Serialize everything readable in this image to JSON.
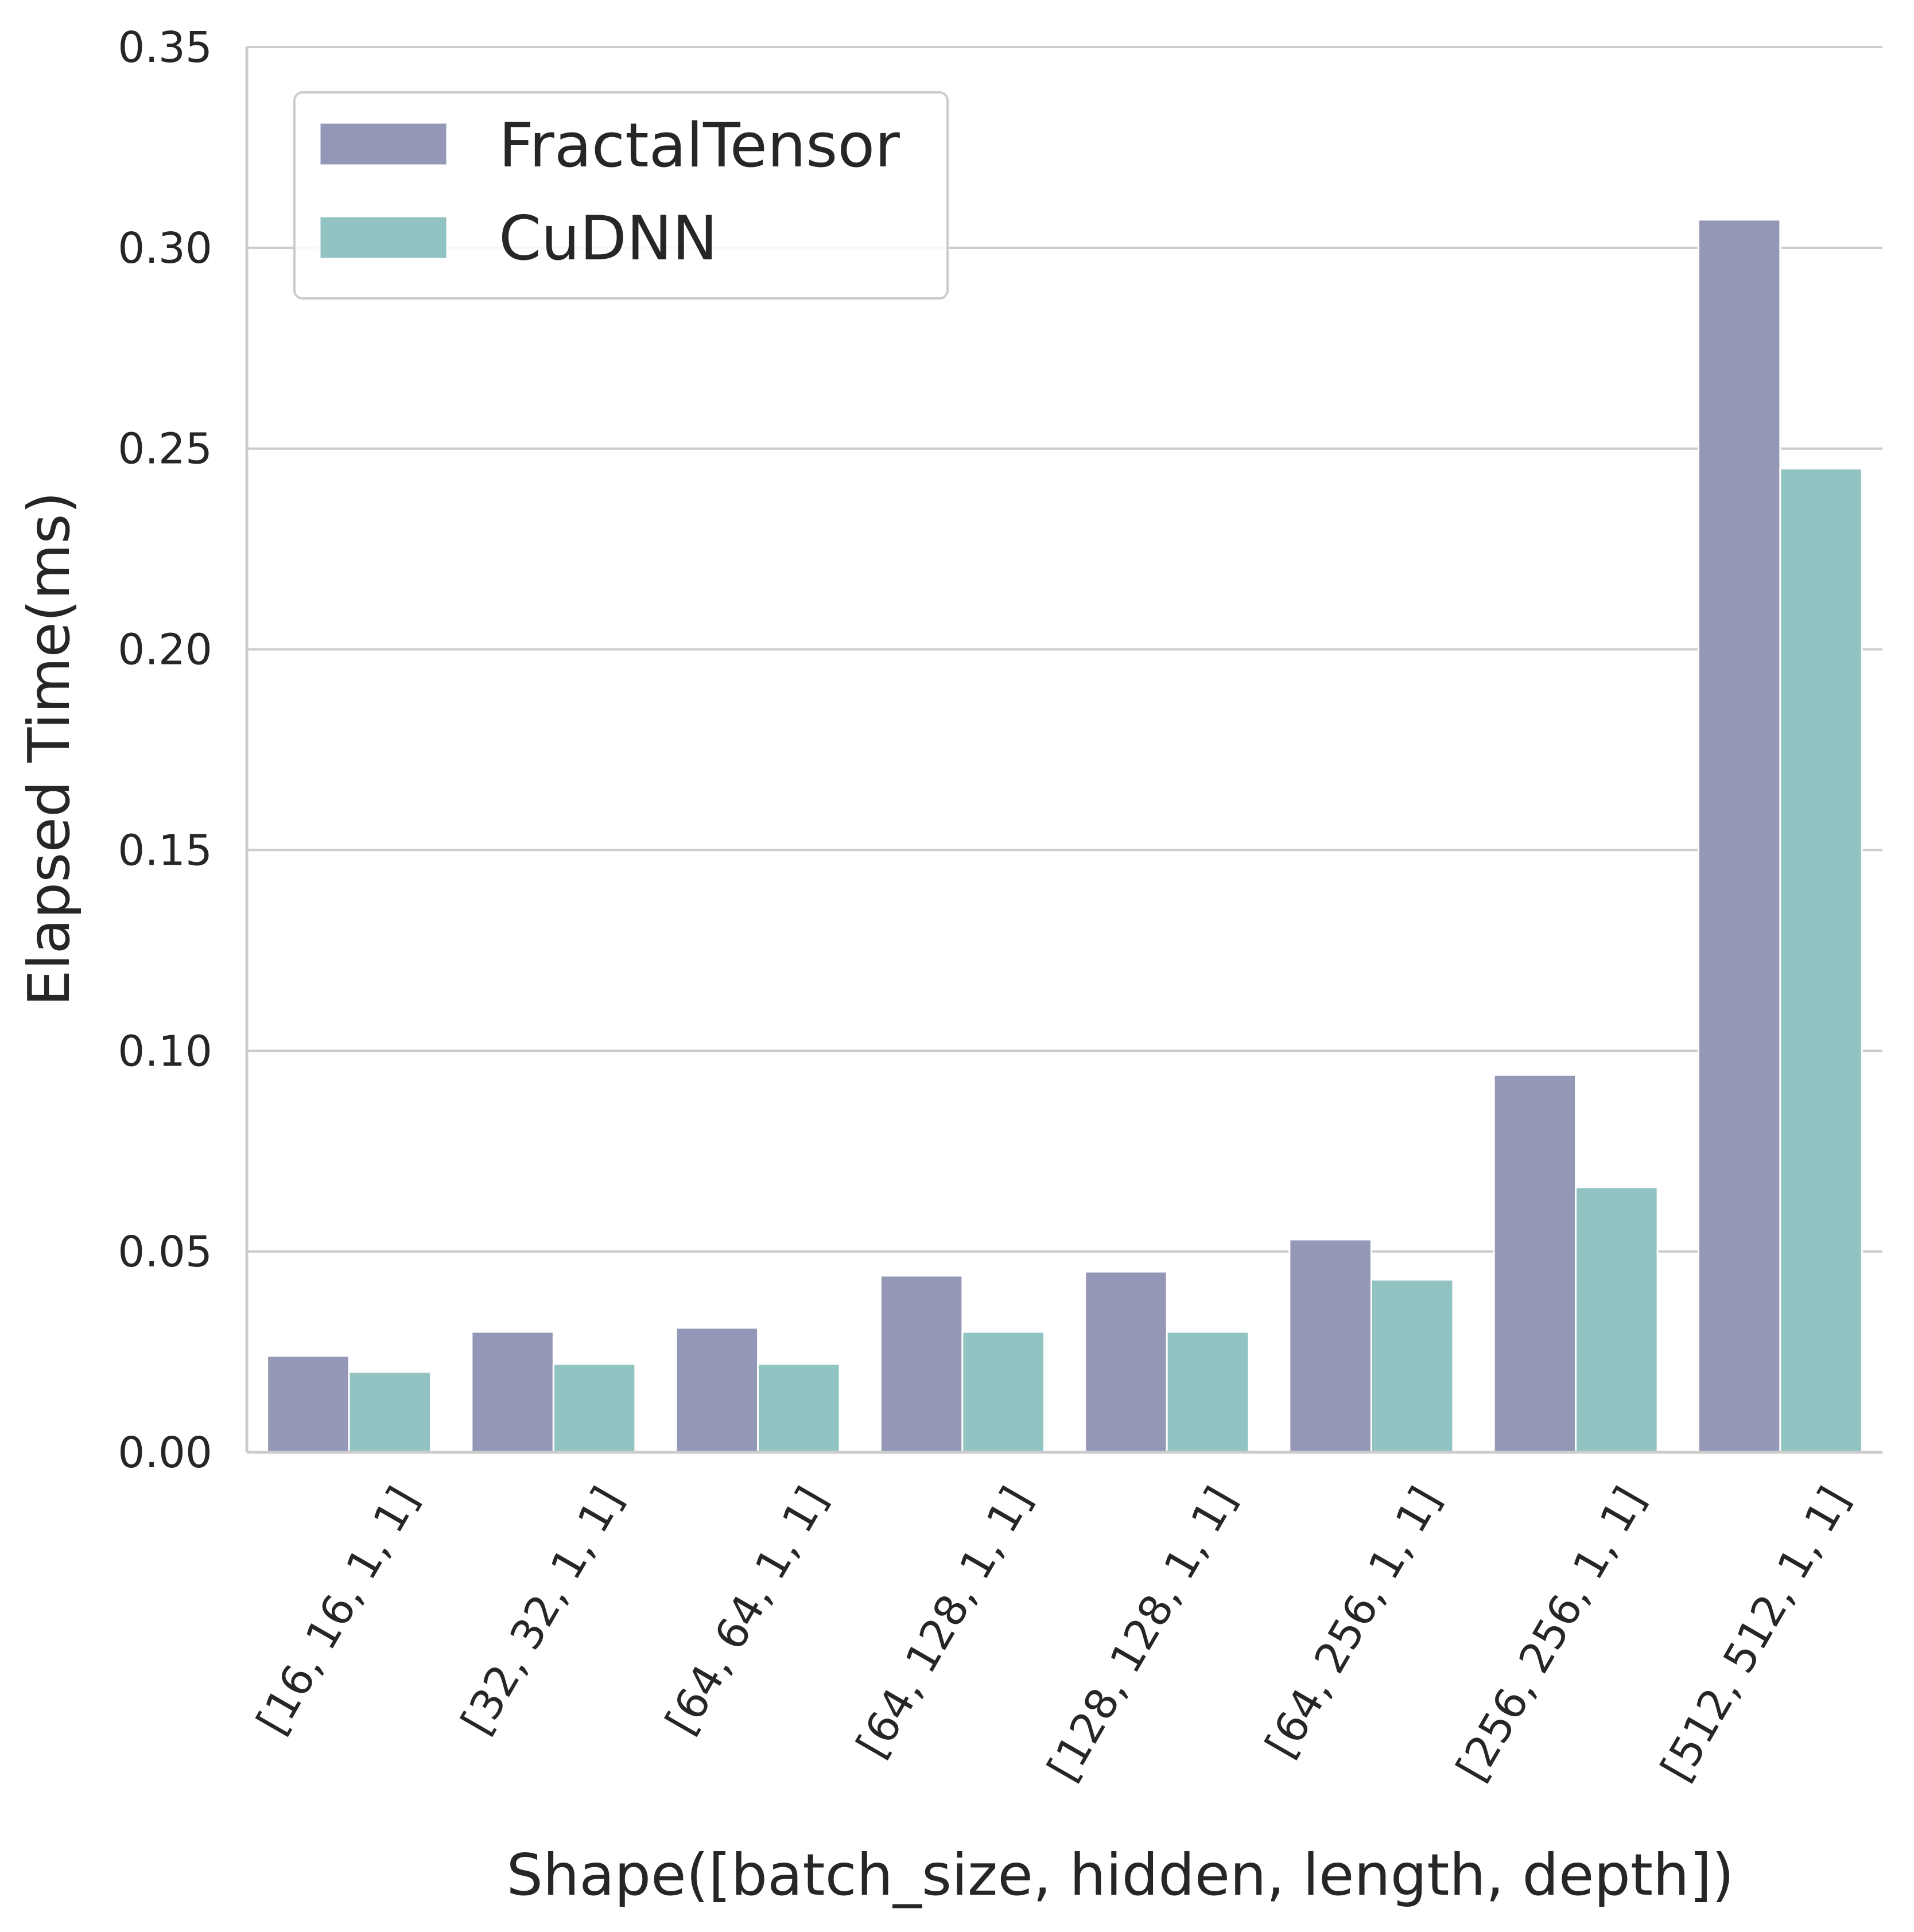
{
  "chart_data": {
    "type": "bar",
    "categories": [
      "[16, 16, 1, 1]",
      "[32, 32, 1, 1]",
      "[64, 64, 1, 1]",
      "[64, 128, 1, 1]",
      "[128, 128, 1, 1]",
      "[64, 256, 1, 1]",
      "[256, 256, 1, 1]",
      "[512, 512, 1, 1]"
    ],
    "series": [
      {
        "name": "FractalTensor",
        "color": "#9597b6",
        "values": [
          0.024,
          0.03,
          0.031,
          0.044,
          0.045,
          0.053,
          0.094,
          0.307
        ]
      },
      {
        "name": "CuDNN",
        "color": "#91c3c3",
        "values": [
          0.02,
          0.022,
          0.022,
          0.03,
          0.03,
          0.043,
          0.066,
          0.245
        ]
      }
    ],
    "title": "",
    "xlabel": "Shape([batch_size, hidden, length, depth])",
    "ylabel": "Elapsed Time(ms)",
    "ylim": [
      0,
      0.35
    ],
    "yticks": [
      "0.00",
      "0.05",
      "0.10",
      "0.15",
      "0.20",
      "0.25",
      "0.30",
      "0.35"
    ],
    "grid": "horizontal",
    "legend_position": "top-left"
  }
}
